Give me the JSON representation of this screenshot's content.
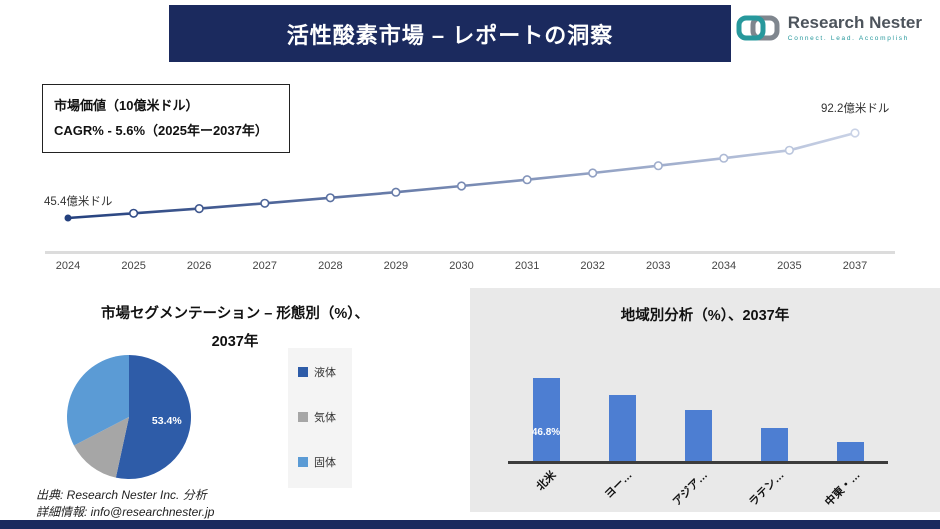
{
  "header": {
    "title": "活性酸素市場 – レポートの洞察",
    "logo": {
      "name": "Research Nester",
      "tagline": "Connect. Lead. Accomplish"
    }
  },
  "info_box": {
    "line1": "市場価値（10億米ドル）",
    "line2": "CAGR% - 5.6%（2025年ー2037年）"
  },
  "pie_section": {
    "title_line1": "市場セグメンテーション – 形態別（%）、",
    "title_line2": "2037年"
  },
  "bar_section": {
    "title": "地域別分析（%）、2037年"
  },
  "footer": {
    "source": "出典: Research Nester Inc. 分析",
    "details": "詳細情報: info@researchnester.jp"
  },
  "colors": {
    "banner_navy": "#1b2a5e",
    "line_gradient_start": "#24407e",
    "line_gradient_end": "#c9d2e6",
    "panel_bg": "#e9e9e9",
    "logo_teal": "#27989c",
    "logo_gray": "#7f868e"
  },
  "chart_data": [
    {
      "type": "line",
      "title": "市場価値（10億米ドル）",
      "x": [
        "2024",
        "2025",
        "2026",
        "2027",
        "2028",
        "2029",
        "2030",
        "2031",
        "2032",
        "2033",
        "2034",
        "2035",
        "2037"
      ],
      "values": [
        45.4,
        48.0,
        50.6,
        53.5,
        56.5,
        59.6,
        63.0,
        66.5,
        70.2,
        74.2,
        78.3,
        82.7,
        92.2
      ],
      "start_label": "45.4億米ドル",
      "end_label": "92.2億米ドル",
      "cagr_note": "CAGR% - 5.6%（2025年ー2037年）",
      "ylim": [
        40,
        100
      ],
      "grid": false,
      "legend_position": "none"
    },
    {
      "type": "pie",
      "title": "市場セグメンテーション – 形態別（%）、2037年",
      "labels": [
        "液体",
        "気体",
        "固体"
      ],
      "values": [
        53.4,
        14.0,
        32.6
      ],
      "shown_label": "53.4%",
      "colors": [
        "#2e5ca8",
        "#a6a6a6",
        "#5b9bd5"
      ],
      "legend_position": "right"
    },
    {
      "type": "bar",
      "title": "地域別分析（%）、2037年",
      "categories": [
        "北米",
        "ヨー…",
        "アジア…",
        "ラテン…",
        "中東・…"
      ],
      "values": [
        46.8,
        37.0,
        29.0,
        19.0,
        11.0
      ],
      "shown_label": "46.8%",
      "bar_color": "#4d7ed2",
      "ylim": [
        0,
        55
      ],
      "grid": false
    }
  ]
}
